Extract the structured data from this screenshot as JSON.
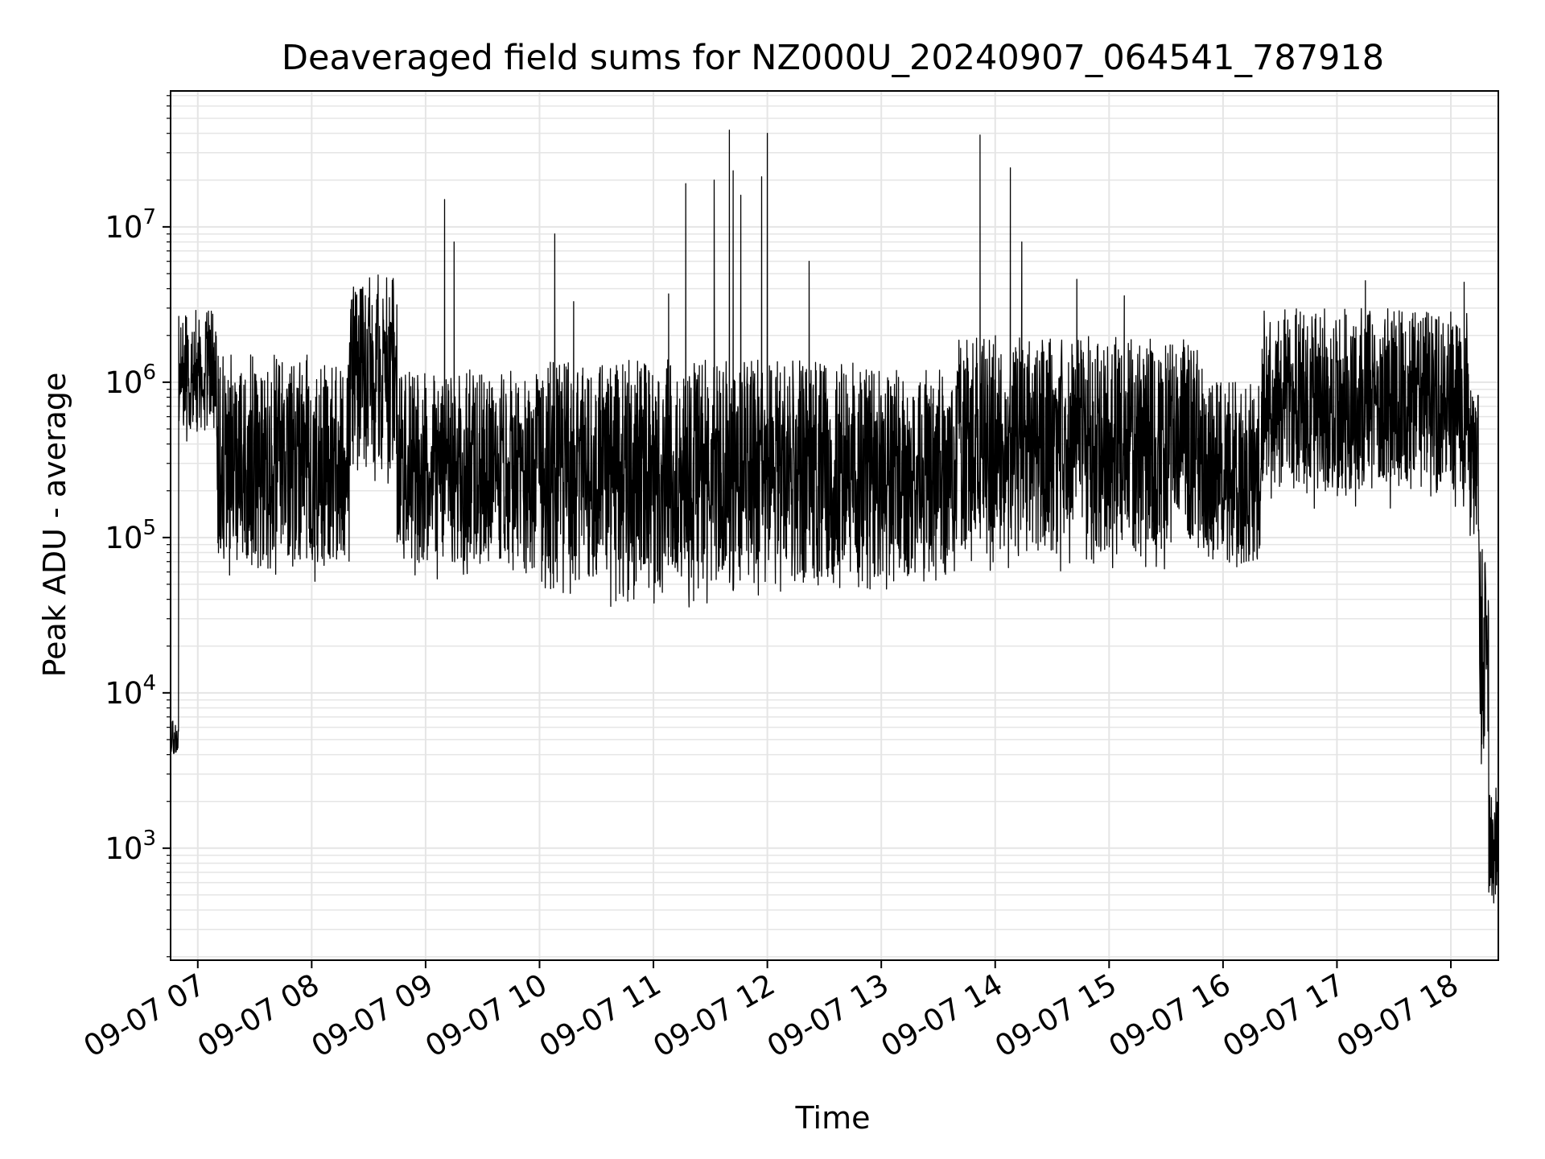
{
  "chart_data": {
    "type": "line",
    "title": "Deaveraged field sums for NZ000U_20240907_064541_787918",
    "xlabel": "Time",
    "ylabel": "Peak ADU - average",
    "yscale": "log",
    "ylim": [
      190,
      75000000
    ],
    "xlim": [
      "2024-09-07T06:45:41",
      "2024-09-07T18:25:00"
    ],
    "grid": "on (major and minor)",
    "line_color": "#000000",
    "grid_color": "#e5e5e5",
    "x_tick_labels": [
      "09-07 07",
      "09-07 08",
      "09-07 09",
      "09-07 10",
      "09-07 11",
      "09-07 12",
      "09-07 13",
      "09-07 14",
      "09-07 15",
      "09-07 16",
      "09-07 17",
      "09-07 18"
    ],
    "x_ticks": [
      "2024-09-07T07:00",
      "2024-09-07T08:00",
      "2024-09-07T09:00",
      "2024-09-07T10:00",
      "2024-09-07T11:00",
      "2024-09-07T12:00",
      "2024-09-07T13:00",
      "2024-09-07T14:00",
      "2024-09-07T15:00",
      "2024-09-07T16:00",
      "2024-09-07T17:00",
      "2024-09-07T18:00"
    ],
    "y_ticks": [
      {
        "value": 1000,
        "base": "10",
        "exp": "3"
      },
      {
        "value": 10000,
        "base": "10",
        "exp": "4"
      },
      {
        "value": 100000,
        "base": "10",
        "exp": "5"
      },
      {
        "value": 1000000,
        "base": "10",
        "exp": "6"
      },
      {
        "value": 10000000,
        "base": "10",
        "exp": "7"
      }
    ],
    "series": [
      {
        "segments": [
          {
            "start": "2024-09-07T06:45:41",
            "end": "2024-09-07T06:50",
            "low": 3800,
            "high": 7000
          },
          {
            "start": "2024-09-07T06:50",
            "end": "2024-09-07T07:10",
            "low": 400000,
            "high": 2900000
          },
          {
            "start": "2024-09-07T07:10",
            "end": "2024-09-07T08:20",
            "low": 50000,
            "high": 1500000
          },
          {
            "start": "2024-09-07T08:20",
            "end": "2024-09-07T08:45",
            "low": 200000,
            "high": 4900000
          },
          {
            "start": "2024-09-07T08:45",
            "end": "2024-09-07T10:00",
            "low": 50000,
            "high": 1200000
          },
          {
            "start": "2024-09-07T10:00",
            "end": "2024-09-07T12:50",
            "low": 35000,
            "high": 1400000
          },
          {
            "start": "2024-09-07T12:50",
            "end": "2024-09-07T13:40",
            "low": 40000,
            "high": 1200000
          },
          {
            "start": "2024-09-07T13:40",
            "end": "2024-09-07T15:50",
            "low": 60000,
            "high": 2000000
          },
          {
            "start": "2024-09-07T15:50",
            "end": "2024-09-07T16:20",
            "low": 50000,
            "high": 1000000
          },
          {
            "start": "2024-09-07T16:20",
            "end": "2024-09-07T18:10",
            "low": 150000,
            "high": 3000000
          },
          {
            "start": "2024-09-07T18:10",
            "end": "2024-09-07T18:15",
            "low": 80000,
            "high": 1000000
          },
          {
            "start": "2024-09-07T18:15",
            "end": "2024-09-07T18:20",
            "low": 3000,
            "high": 90000
          },
          {
            "start": "2024-09-07T18:20",
            "end": "2024-09-07T18:25",
            "low": 340,
            "high": 2500
          }
        ],
        "spikes": [
          {
            "x": "2024-09-07T06:59",
            "y": 2900000
          },
          {
            "x": "2024-09-07T08:22",
            "y": 4100000
          },
          {
            "x": "2024-09-07T08:35",
            "y": 4900000
          },
          {
            "x": "2024-09-07T09:10",
            "y": 15000000
          },
          {
            "x": "2024-09-07T09:15",
            "y": 8000000
          },
          {
            "x": "2024-09-07T10:08",
            "y": 9000000
          },
          {
            "x": "2024-09-07T10:18",
            "y": 3300000
          },
          {
            "x": "2024-09-07T11:08",
            "y": 3700000
          },
          {
            "x": "2024-09-07T11:17",
            "y": 19000000
          },
          {
            "x": "2024-09-07T11:32",
            "y": 20000000
          },
          {
            "x": "2024-09-07T11:40",
            "y": 42000000
          },
          {
            "x": "2024-09-07T11:42",
            "y": 23000000
          },
          {
            "x": "2024-09-07T11:46",
            "y": 16000000
          },
          {
            "x": "2024-09-07T11:57",
            "y": 21000000
          },
          {
            "x": "2024-09-07T12:00",
            "y": 40000000
          },
          {
            "x": "2024-09-07T12:22",
            "y": 6000000
          },
          {
            "x": "2024-09-07T13:52",
            "y": 39000000
          },
          {
            "x": "2024-09-07T14:08",
            "y": 24000000
          },
          {
            "x": "2024-09-07T14:14",
            "y": 8000000
          },
          {
            "x": "2024-09-07T14:43",
            "y": 4600000
          },
          {
            "x": "2024-09-07T15:08",
            "y": 3600000
          },
          {
            "x": "2024-09-07T17:15",
            "y": 4500000
          },
          {
            "x": "2024-09-07T18:07",
            "y": 4400000
          }
        ]
      }
    ]
  }
}
